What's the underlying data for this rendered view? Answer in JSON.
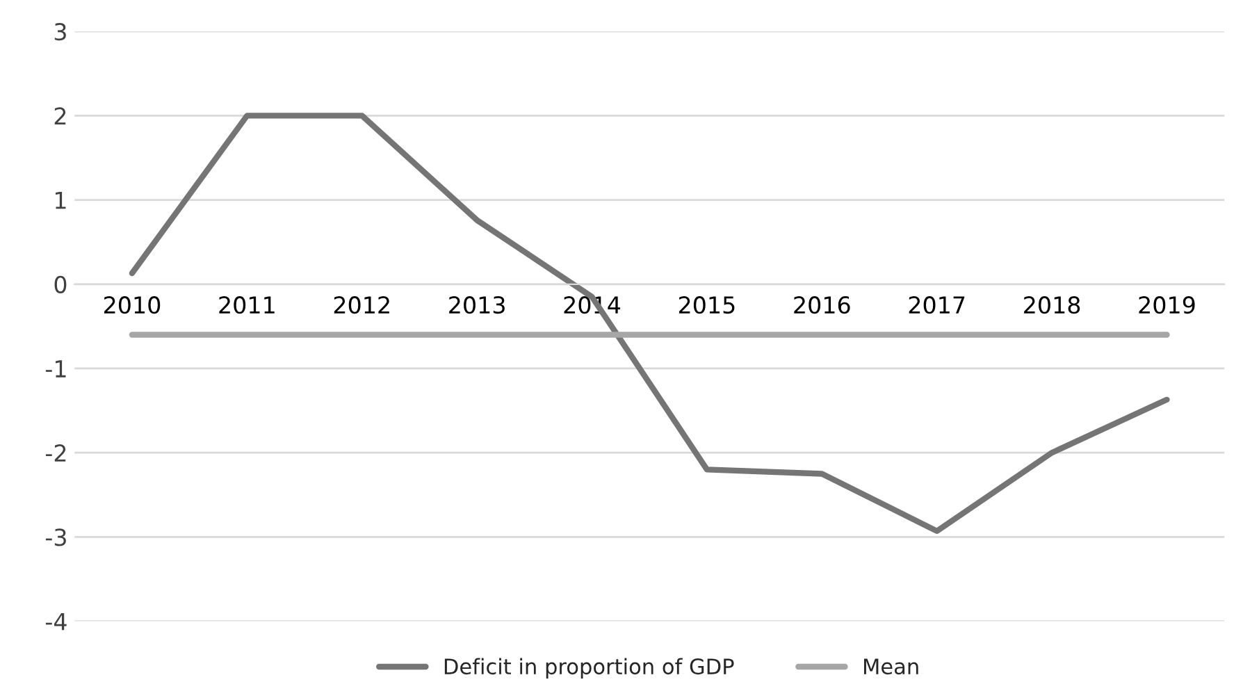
{
  "chart_data": {
    "type": "line",
    "categories": [
      "2010",
      "2011",
      "2012",
      "2013",
      "2014",
      "2015",
      "2016",
      "2017",
      "2018",
      "2019"
    ],
    "series": [
      {
        "name": "Deficit in proportion of GDP",
        "color": "#757575",
        "values": [
          0.13,
          2.0,
          2.0,
          0.76,
          -0.15,
          -2.2,
          -2.25,
          -2.93,
          -2.0,
          -1.37
        ]
      },
      {
        "name": "Mean",
        "color": "#a6a6a6",
        "values": [
          -0.6,
          -0.6,
          -0.6,
          -0.6,
          -0.6,
          -0.6,
          -0.6,
          -0.6,
          -0.6,
          -0.6
        ]
      }
    ],
    "ylim": [
      -4,
      3
    ],
    "yticks": [
      -4,
      -3,
      -2,
      -1,
      0,
      1,
      2,
      3
    ],
    "grid": "y",
    "legend": "bottom",
    "marker": "none",
    "line_style": "solid"
  }
}
